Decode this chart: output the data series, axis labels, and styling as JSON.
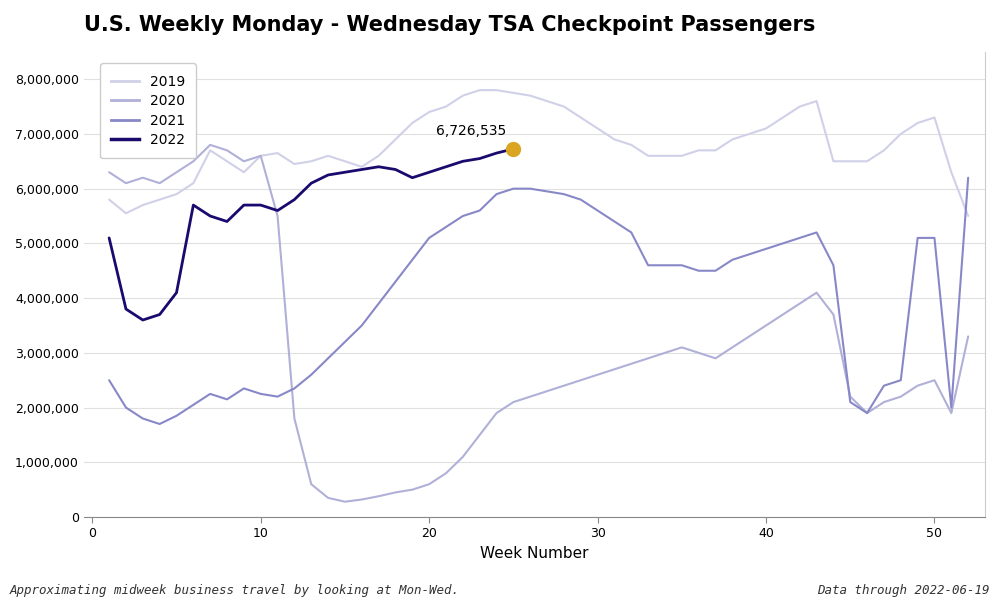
{
  "title": "U.S. Weekly Monday - Wednesday TSA Checkpoint Passengers",
  "xlabel": "Week Number",
  "ylabel": "",
  "footnote_left": "Approximating midweek business travel by looking at Mon-Wed.",
  "footnote_right": "Data through 2022-06-19",
  "annotation_text": "6,726,535",
  "annotation_week": 25,
  "annotation_value": 6726535,
  "ylim": [
    0,
    8500000
  ],
  "xlim": [
    -0.5,
    53
  ],
  "yticks": [
    0,
    1000000,
    2000000,
    3000000,
    4000000,
    5000000,
    6000000,
    7000000,
    8000000
  ],
  "ytick_labels": [
    "0",
    "1,000,000",
    "2,000,000",
    "3,000,000",
    "4,000,000",
    "5,000,000",
    "6,000,000",
    "7,000,000",
    "8,000,000"
  ],
  "xticks": [
    0,
    10,
    20,
    30,
    40,
    50
  ],
  "colors": {
    "2019": "#d0d0e8",
    "2020": "#b0b0d8",
    "2021": "#8888c8",
    "2022": "#1a0a6e"
  },
  "linewidths": {
    "2019": 1.5,
    "2020": 1.5,
    "2021": 1.5,
    "2022": 2.0
  },
  "data_2019": [
    5800000,
    5550000,
    5700000,
    5800000,
    5900000,
    6100000,
    6700000,
    6500000,
    6300000,
    6600000,
    6650000,
    6450000,
    6500000,
    6600000,
    6500000,
    6400000,
    6600000,
    6900000,
    7200000,
    7400000,
    7500000,
    7700000,
    7800000,
    7800000,
    7750000,
    7700000,
    7600000,
    7500000,
    7300000,
    7100000,
    6900000,
    6800000,
    6600000,
    6600000,
    6600000,
    6700000,
    6700000,
    6900000,
    7000000,
    7100000,
    7300000,
    7500000,
    7600000,
    6500000,
    6500000,
    6500000,
    6700000,
    7000000,
    7200000,
    7300000,
    6300000,
    5500000
  ],
  "data_2020": [
    6300000,
    6100000,
    6200000,
    6100000,
    6300000,
    6500000,
    6800000,
    6700000,
    6500000,
    6600000,
    5500000,
    1800000,
    600000,
    350000,
    280000,
    320000,
    380000,
    450000,
    500000,
    600000,
    800000,
    1100000,
    1500000,
    1900000,
    2100000,
    2200000,
    2300000,
    2400000,
    2500000,
    2600000,
    2700000,
    2800000,
    2900000,
    3000000,
    3100000,
    3000000,
    2900000,
    3100000,
    3300000,
    3500000,
    3700000,
    3900000,
    4100000,
    3700000,
    2200000,
    1900000,
    2100000,
    2200000,
    2400000,
    2500000,
    1900000,
    3300000
  ],
  "data_2021": [
    2500000,
    2000000,
    1800000,
    1700000,
    1850000,
    2050000,
    2250000,
    2150000,
    2350000,
    2250000,
    2200000,
    2350000,
    2600000,
    2900000,
    3200000,
    3500000,
    3900000,
    4300000,
    4700000,
    5100000,
    5300000,
    5500000,
    5600000,
    5900000,
    6000000,
    6000000,
    5950000,
    5900000,
    5800000,
    5600000,
    5400000,
    5200000,
    4600000,
    4600000,
    4600000,
    4500000,
    4500000,
    4700000,
    4800000,
    4900000,
    5000000,
    5100000,
    5200000,
    4600000,
    2100000,
    1900000,
    2400000,
    2500000,
    5100000,
    5100000,
    2000000,
    6200000
  ],
  "data_2022": [
    5100000,
    3800000,
    3600000,
    3700000,
    4100000,
    5700000,
    5500000,
    5400000,
    5700000,
    5700000,
    5600000,
    5800000,
    6100000,
    6250000,
    6300000,
    6350000,
    6400000,
    6350000,
    6200000,
    6300000,
    6400000,
    6500000,
    6550000,
    6650000,
    6726535
  ],
  "weeks_2019": [
    1,
    2,
    3,
    4,
    5,
    6,
    7,
    8,
    9,
    10,
    11,
    12,
    13,
    14,
    15,
    16,
    17,
    18,
    19,
    20,
    21,
    22,
    23,
    24,
    25,
    26,
    27,
    28,
    29,
    30,
    31,
    32,
    33,
    34,
    35,
    36,
    37,
    38,
    39,
    40,
    41,
    42,
    43,
    44,
    45,
    46,
    47,
    48,
    49,
    50,
    51,
    52
  ],
  "weeks_2020": [
    1,
    2,
    3,
    4,
    5,
    6,
    7,
    8,
    9,
    10,
    11,
    12,
    13,
    14,
    15,
    16,
    17,
    18,
    19,
    20,
    21,
    22,
    23,
    24,
    25,
    26,
    27,
    28,
    29,
    30,
    31,
    32,
    33,
    34,
    35,
    36,
    37,
    38,
    39,
    40,
    41,
    42,
    43,
    44,
    45,
    46,
    47,
    48,
    49,
    50,
    51,
    52
  ],
  "weeks_2021": [
    1,
    2,
    3,
    4,
    5,
    6,
    7,
    8,
    9,
    10,
    11,
    12,
    13,
    14,
    15,
    16,
    17,
    18,
    19,
    20,
    21,
    22,
    23,
    24,
    25,
    26,
    27,
    28,
    29,
    30,
    31,
    32,
    33,
    34,
    35,
    36,
    37,
    38,
    39,
    40,
    41,
    42,
    43,
    44,
    45,
    46,
    47,
    48,
    49,
    50,
    51,
    52
  ],
  "weeks_2022": [
    1,
    2,
    3,
    4,
    5,
    6,
    7,
    8,
    9,
    10,
    11,
    12,
    13,
    14,
    15,
    16,
    17,
    18,
    19,
    20,
    21,
    22,
    23,
    24,
    25
  ],
  "legend_loc": "upper left"
}
